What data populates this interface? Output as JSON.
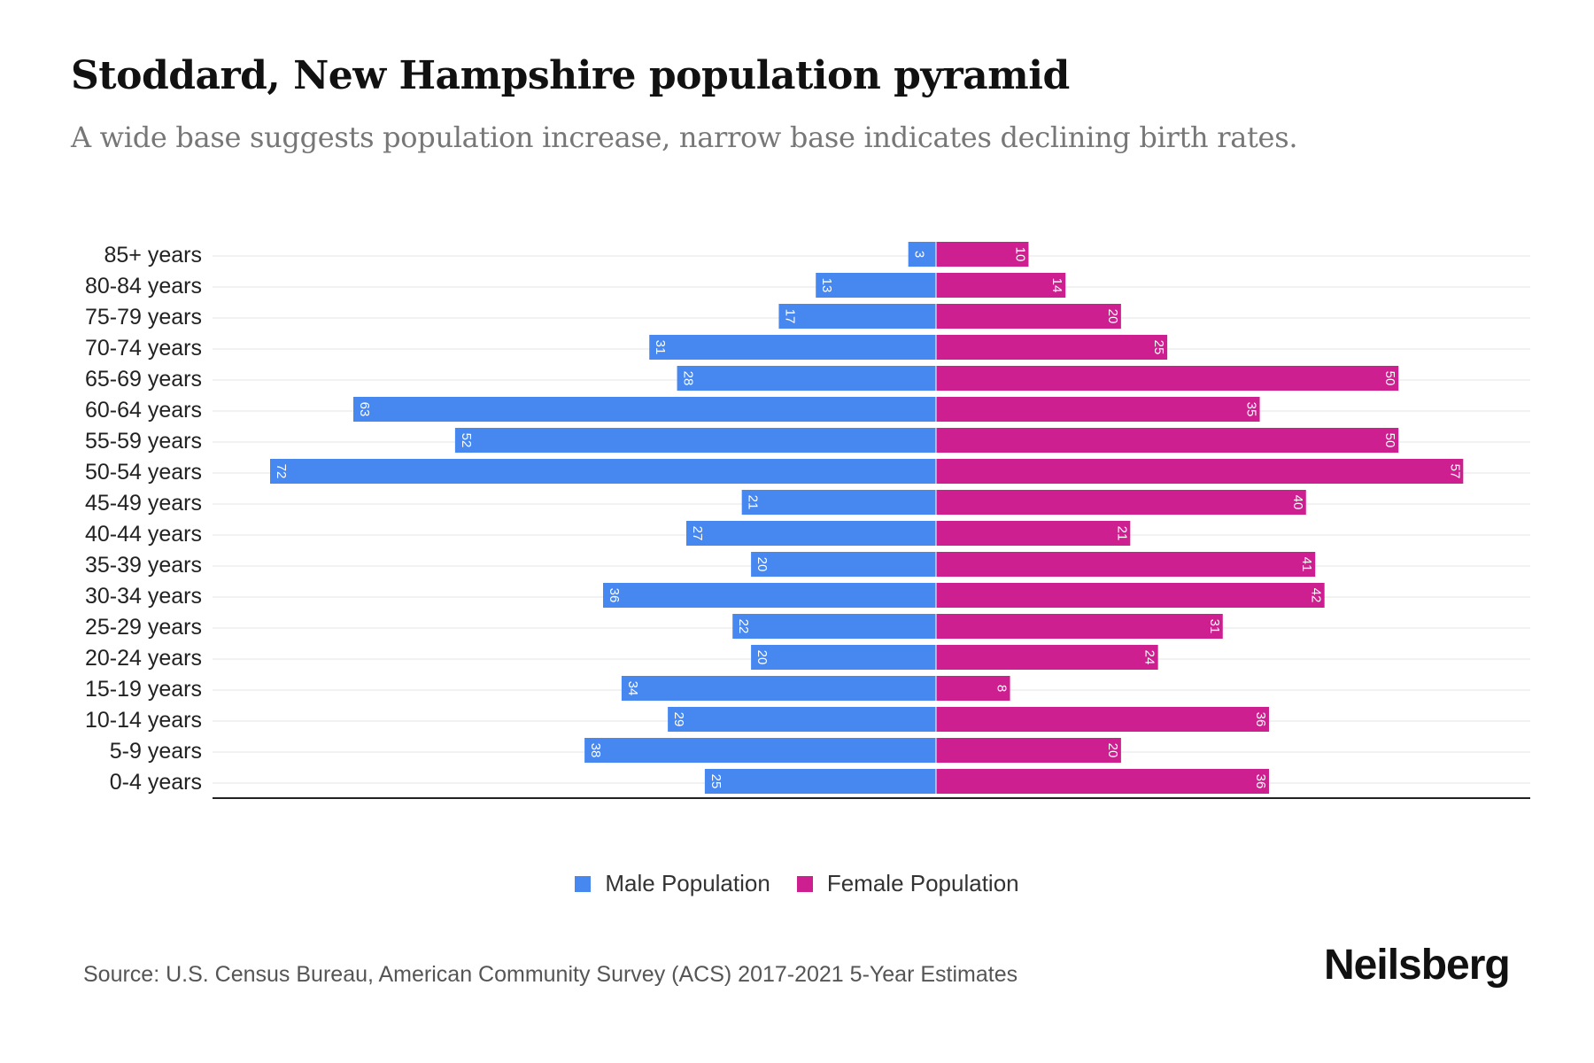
{
  "title": "Stoddard, New Hampshire population pyramid",
  "subtitle": "A wide base suggests population increase, narrow base indicates declining birth rates.",
  "source": "Source: U.S. Census Bureau, American Community Survey (ACS) 2017-2021 5-Year Estimates",
  "logo": "Neilsberg",
  "colors": {
    "male": "#4687F0",
    "female": "#CD1F8F"
  },
  "chart_data": {
    "type": "bar",
    "orientation": "horizontal-pyramid",
    "title": "Stoddard, New Hampshire population pyramid",
    "categories": [
      "85+ years",
      "80-84 years",
      "75-79 years",
      "70-74 years",
      "65-69 years",
      "60-64 years",
      "55-59 years",
      "50-54 years",
      "45-49 years",
      "40-44 years",
      "35-39 years",
      "30-34 years",
      "25-29 years",
      "20-24 years",
      "15-19 years",
      "10-14 years",
      "5-9 years",
      "0-4 years"
    ],
    "series": [
      {
        "name": "Male Population",
        "values": [
          3,
          13,
          17,
          31,
          28,
          63,
          52,
          72,
          21,
          27,
          20,
          36,
          22,
          20,
          34,
          29,
          38,
          25
        ]
      },
      {
        "name": "Female Population",
        "values": [
          10,
          14,
          20,
          25,
          50,
          35,
          50,
          57,
          40,
          21,
          41,
          42,
          31,
          24,
          8,
          36,
          20,
          36
        ]
      }
    ],
    "xlim": [
      -72,
      72
    ],
    "grid": true,
    "legend": "bottom-center"
  }
}
